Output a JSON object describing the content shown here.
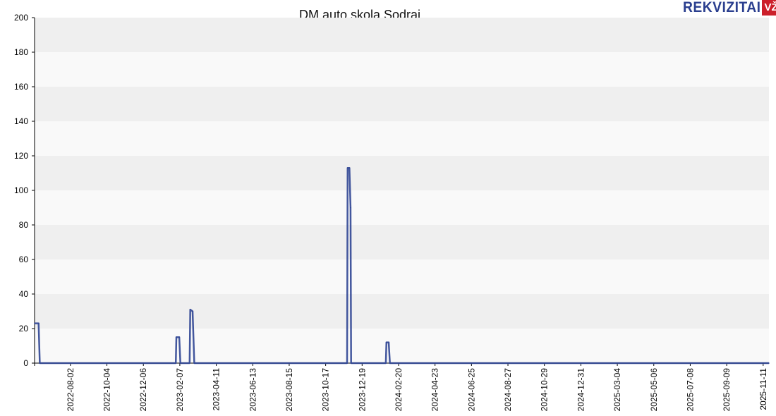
{
  "logo": {
    "text": "REKVIZITAI",
    "badge": "VŽ"
  },
  "chart_data": {
    "type": "line",
    "title": "DM auto skola Sodrai",
    "xlabel": "",
    "ylabel": "",
    "ylim": [
      0,
      200
    ],
    "yticks": [
      0,
      20,
      40,
      60,
      80,
      100,
      120,
      140,
      160,
      180,
      200
    ],
    "xlim": [
      "2022-06-01",
      "2025-11-21"
    ],
    "xticks": [
      "2022-08-02",
      "2022-10-04",
      "2022-12-06",
      "2023-02-07",
      "2023-04-11",
      "2023-06-13",
      "2023-08-15",
      "2023-10-17",
      "2023-12-19",
      "2024-02-20",
      "2024-04-23",
      "2024-06-25",
      "2024-08-27",
      "2024-10-29",
      "2024-12-31",
      "2025-03-04",
      "2025-05-06",
      "2025-07-08",
      "2025-09-09",
      "2025-11-11"
    ],
    "grid": "horizontal bands",
    "colors": {
      "line": "#2f4594",
      "band_light": "#f9f9f9",
      "band_dark": "#efefef"
    },
    "series": [
      {
        "points": [
          [
            "2022-06-01",
            23
          ],
          [
            "2022-06-08",
            23
          ],
          [
            "2022-06-10",
            0
          ],
          [
            "2023-01-31",
            0
          ],
          [
            "2023-02-01",
            15
          ],
          [
            "2023-02-06",
            15
          ],
          [
            "2023-02-08",
            0
          ],
          [
            "2023-02-24",
            0
          ],
          [
            "2023-02-25",
            31
          ],
          [
            "2023-03-01",
            30
          ],
          [
            "2023-03-04",
            0
          ],
          [
            "2023-11-23",
            0
          ],
          [
            "2023-11-24",
            113
          ],
          [
            "2023-11-27",
            113
          ],
          [
            "2023-11-29",
            90
          ],
          [
            "2023-11-30",
            0
          ],
          [
            "2024-01-29",
            0
          ],
          [
            "2024-01-30",
            12
          ],
          [
            "2024-02-03",
            12
          ],
          [
            "2024-02-05",
            0
          ],
          [
            "2025-11-21",
            0
          ]
        ]
      }
    ]
  }
}
